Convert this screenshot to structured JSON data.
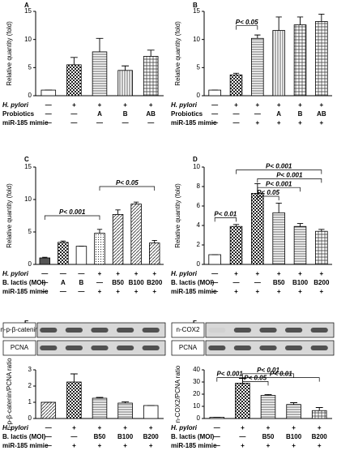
{
  "chart_data": [
    {
      "type": "bar",
      "panel": "A",
      "ylabel": "Relative quantity (fold)",
      "values": [
        1,
        5.5,
        7.8,
        4.5,
        7.0
      ],
      "errors": [
        0,
        1.3,
        2.4,
        0.8,
        1.1
      ],
      "ylim": [
        0,
        15
      ],
      "yticks": [
        0,
        5,
        10,
        15
      ],
      "conditions": [
        {
          "label": "H. pylori",
          "values": [
            "—",
            "+",
            "+",
            "+",
            "+"
          ]
        },
        {
          "label": "Probiotics",
          "values": [
            "—",
            "—",
            "A",
            "B",
            "AB"
          ]
        },
        {
          "label": "miR-185 mimic",
          "values": [
            "—",
            "—",
            "—",
            "—",
            "—"
          ]
        }
      ]
    },
    {
      "type": "bar",
      "panel": "B",
      "ylabel": "Relative quantity (fold)",
      "values": [
        1,
        3.7,
        10.2,
        11.6,
        12.6,
        13.2
      ],
      "errors": [
        0,
        0.3,
        0.6,
        2.4,
        1.4,
        1.3
      ],
      "ylim": [
        0,
        15
      ],
      "yticks": [
        0,
        5,
        10,
        15
      ],
      "annotations": [
        "P< 0.05"
      ],
      "conditions": [
        {
          "label": "H. pylori",
          "values": [
            "—",
            "+",
            "+",
            "+",
            "+",
            "+"
          ]
        },
        {
          "label": "Probiotics",
          "values": [
            "—",
            "—",
            "—",
            "A",
            "B",
            "AB"
          ]
        },
        {
          "label": "miR-185 mimic",
          "values": [
            "—",
            "—",
            "+",
            "+",
            "+",
            "+"
          ]
        }
      ]
    },
    {
      "type": "bar",
      "panel": "C",
      "ylabel": "Relative quantity (fold)",
      "values": [
        1,
        3.4,
        2.8,
        4.8,
        7.7,
        9.3,
        3.3
      ],
      "errors": [
        0.1,
        0.2,
        0,
        0.6,
        0.7,
        0.3,
        0.4
      ],
      "ylim": [
        0,
        15
      ],
      "yticks": [
        0,
        5,
        10,
        15
      ],
      "annotations": [
        "P< 0.001",
        "P< 0.05"
      ],
      "conditions": [
        {
          "label": "H. pylori",
          "values": [
            "—",
            "—",
            "—",
            "+",
            "+",
            "+",
            "+"
          ]
        },
        {
          "label": "B. lactis (MOI)",
          "values": [
            "—",
            "A",
            "B",
            "—",
            "B50",
            "B100",
            "B200"
          ]
        },
        {
          "label": "miR-185 mimic",
          "values": [
            "—",
            "—",
            "—",
            "+",
            "+",
            "+",
            "+"
          ]
        }
      ]
    },
    {
      "type": "bar",
      "panel": "D",
      "ylabel": "Relative quantity (fold)",
      "values": [
        1,
        3.9,
        7.3,
        5.3,
        3.9,
        3.4
      ],
      "errors": [
        0,
        0.2,
        1.0,
        1.0,
        0.3,
        0.2
      ],
      "ylim": [
        0,
        10
      ],
      "yticks": [
        0,
        2,
        4,
        6,
        8,
        10
      ],
      "annotations": [
        "P< 0.01",
        "P< 0.001",
        "P< 0.05",
        "P< 0.001",
        "P< 0.001"
      ],
      "conditions": [
        {
          "label": "H. pylori",
          "values": [
            "—",
            "+",
            "+",
            "+",
            "+",
            "+"
          ]
        },
        {
          "label": "B. lactis (MOI)",
          "values": [
            "—",
            "—",
            "—",
            "B50",
            "B100",
            "B200"
          ]
        },
        {
          "label": "miR-185 mimic",
          "values": [
            "—",
            "+",
            "+",
            "+",
            "+",
            "+"
          ]
        }
      ]
    },
    {
      "type": "bar",
      "panel": "E",
      "ylabel": "n-p-β-catenin/PCNA ratio",
      "blot_labels": [
        "n-p-β-catenin",
        "PCNA"
      ],
      "values": [
        1,
        2.25,
        1.25,
        0.95,
        0.8
      ],
      "errors": [
        0,
        0.5,
        0.05,
        0.08,
        0
      ],
      "ylim": [
        0,
        3
      ],
      "yticks": [
        0,
        1,
        2,
        3
      ],
      "conditions": [
        {
          "label": "H. pylori",
          "values": [
            "—",
            "+",
            "+",
            "+",
            "+"
          ]
        },
        {
          "label": "B. lactis (MOI)",
          "values": [
            "—",
            "—",
            "B50",
            "B100",
            "B200"
          ]
        },
        {
          "label": "miR-185 mimic",
          "values": [
            "—",
            "+",
            "+",
            "+",
            "+"
          ]
        }
      ]
    },
    {
      "type": "bar",
      "panel": "F",
      "ylabel": "n-COX2/PCNA ratio",
      "blot_labels": [
        "n-COX2",
        "PCNA"
      ],
      "values": [
        1,
        29,
        19,
        11.5,
        6.5
      ],
      "errors": [
        0,
        4,
        0.7,
        1.5,
        2.5
      ],
      "ylim": [
        0,
        40
      ],
      "yticks": [
        0,
        10,
        20,
        30,
        40
      ],
      "annotations": [
        "P< 0.001",
        "P< 0.05",
        "P< 0.01",
        "P< 0.01"
      ],
      "conditions": [
        {
          "label": "H. pylori",
          "values": [
            "—",
            "+",
            "+",
            "+",
            "+"
          ]
        },
        {
          "label": "B. lactis (MOI)",
          "values": [
            "—",
            "—",
            "B50",
            "B100",
            "B200"
          ]
        },
        {
          "label": "miR-185 mimic",
          "values": [
            "—",
            "+",
            "+",
            "+",
            "+"
          ]
        }
      ]
    }
  ]
}
